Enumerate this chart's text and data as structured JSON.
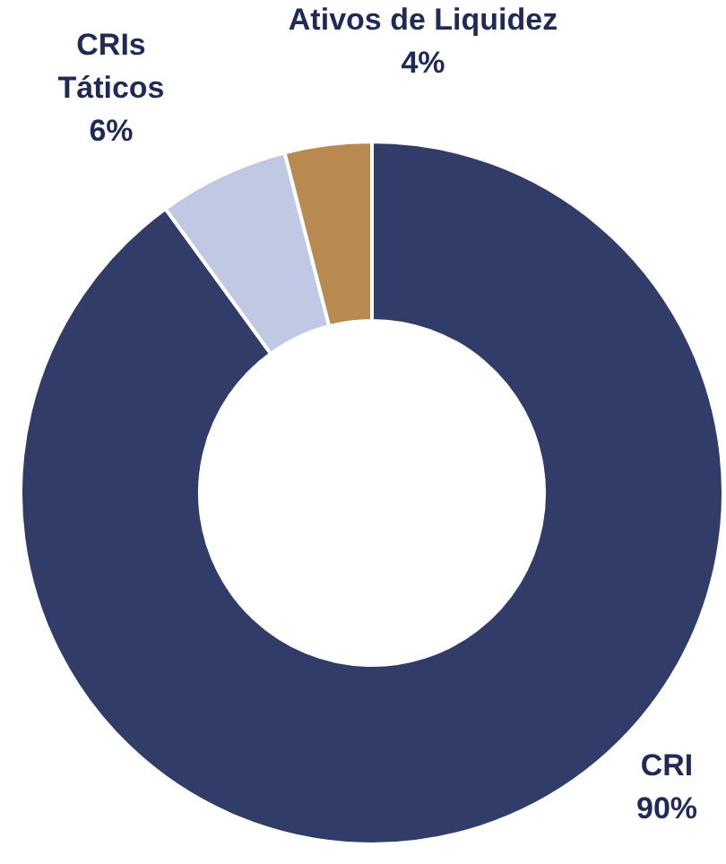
{
  "chart_data": {
    "type": "donut",
    "categories": [
      "CRI",
      "CRIs Táticos",
      "Ativos de Liquidez"
    ],
    "values": [
      90,
      6,
      4
    ],
    "colors": [
      "#323c68",
      "#c0c8e4",
      "#b98a50"
    ],
    "value_labels": [
      "90%",
      "6%",
      "4%"
    ],
    "legend": false
  }
}
